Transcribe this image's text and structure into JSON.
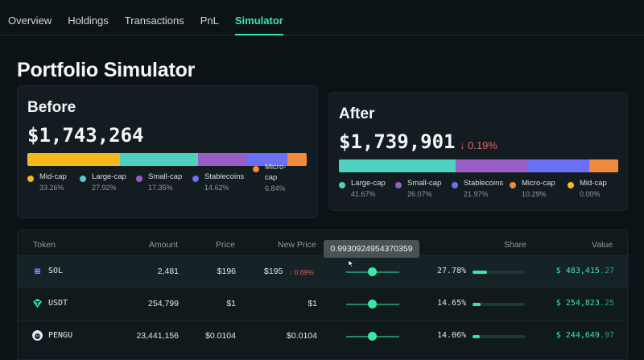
{
  "nav": {
    "tabs": [
      "Overview",
      "Holdings",
      "Transactions",
      "PnL",
      "Simulator"
    ],
    "active": "Simulator"
  },
  "page_title": "Portfolio Simulator",
  "before": {
    "heading": "Before",
    "value": "$1,743,264",
    "segments": [
      {
        "name": "Mid-cap",
        "pct": "33.26%",
        "frac": 0.3326,
        "color": "#f5b91d"
      },
      {
        "name": "Large-cap",
        "pct": "27.92%",
        "frac": 0.2792,
        "color": "#4fd0c0"
      },
      {
        "name": "Small-cap",
        "pct": "17.35%",
        "frac": 0.1735,
        "color": "#9a5cc7"
      },
      {
        "name": "Stablecoins",
        "pct": "14.62%",
        "frac": 0.1462,
        "color": "#6a6ff5"
      },
      {
        "name": "Micro-cap",
        "pct": "6.84%",
        "frac": 0.0684,
        "color": "#f08a3c"
      }
    ]
  },
  "after": {
    "heading": "After",
    "value": "$1,739,901",
    "change": "↓ 0.19%",
    "segments": [
      {
        "name": "Large-cap",
        "pct": "41.67%",
        "frac": 0.4167,
        "color": "#4fd0c0"
      },
      {
        "name": "Small-cap",
        "pct": "26.07%",
        "frac": 0.2607,
        "color": "#9a5cc7"
      },
      {
        "name": "Stablecoins",
        "pct": "21.97%",
        "frac": 0.2197,
        "color": "#6a6ff5"
      },
      {
        "name": "Micro-cap",
        "pct": "10.29%",
        "frac": 0.1029,
        "color": "#f08a3c"
      },
      {
        "name": "Mid-cap",
        "pct": "0.00%",
        "frac": 0.0,
        "color": "#f5b91d"
      }
    ]
  },
  "table": {
    "headers": {
      "token": "Token",
      "amount": "Amount",
      "price": "Price",
      "new_price": "New Price",
      "share": "Share",
      "value": "Value"
    },
    "tooltip": "0.9930924954370359",
    "rows": [
      {
        "token": "SOL",
        "icon": "sol-icon",
        "amount": "2,481",
        "price": "$196",
        "new_price": "$195",
        "new_price_change": "↓ 0.69%",
        "slider_level": 0.5,
        "share": "27.78%",
        "share_frac": 0.2778,
        "value_main": "$ 483,415",
        "value_dec": ".27"
      },
      {
        "token": "USDT",
        "icon": "usdt-icon",
        "amount": "254,799",
        "price": "$1",
        "new_price": "$1",
        "new_price_change": "",
        "slider_level": 0.5,
        "share": "14.65%",
        "share_frac": 0.1465,
        "value_main": "$ 254,823",
        "value_dec": ".25"
      },
      {
        "token": "PENGU",
        "icon": "pengu-icon",
        "amount": "23,441,156",
        "price": "$0.0104",
        "new_price": "$0.0104",
        "new_price_change": "",
        "slider_level": 0.5,
        "share": "14.06%",
        "share_frac": 0.1406,
        "value_main": "$ 244,649",
        "value_dec": ".97"
      }
    ]
  }
}
